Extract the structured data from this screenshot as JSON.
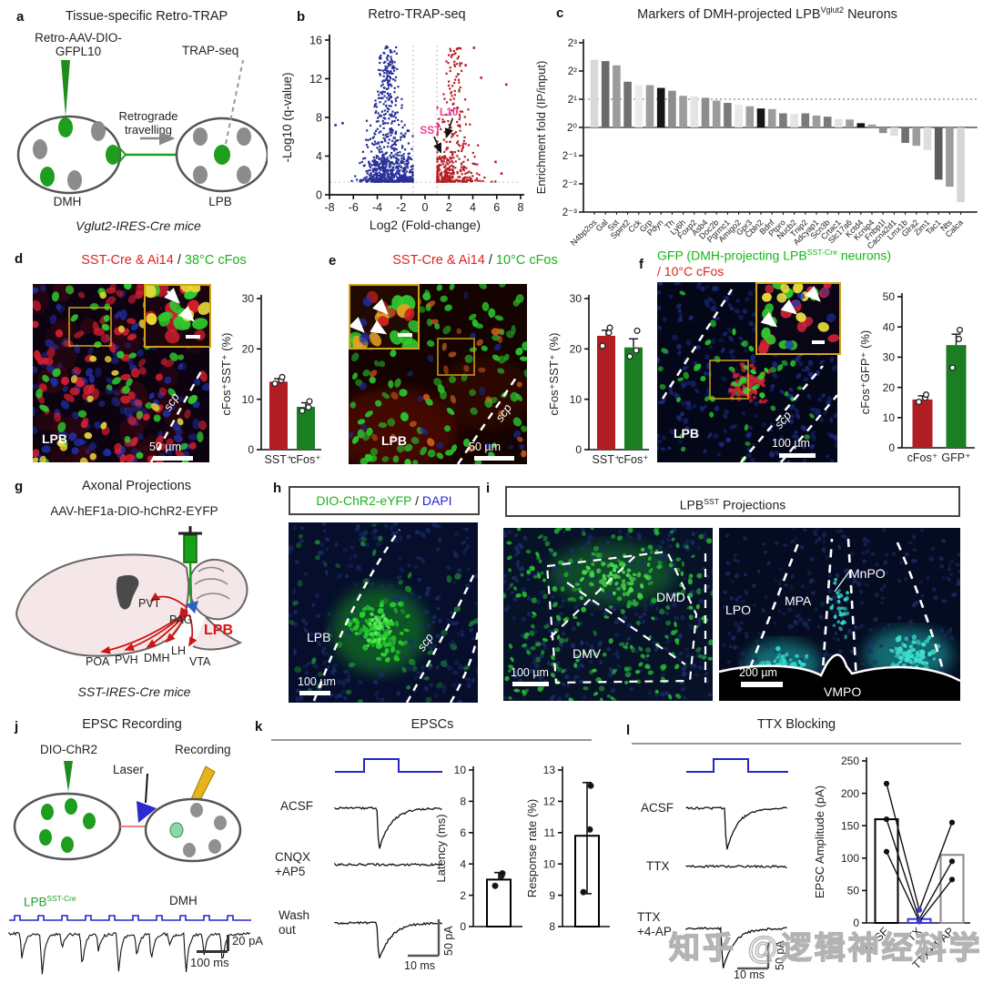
{
  "watermark": "知乎 @逻辑神经科学",
  "panels": {
    "a": {
      "letter": "a",
      "title": "Tissue-specific Retro-TRAP",
      "virus1": "Retro-AAV-DIO-",
      "virus2": "GFPL10",
      "trap": "TRAP-seq",
      "retro1": "Retrograde",
      "retro2": "travelling",
      "dmh": "DMH",
      "lpb": "LPB",
      "mouse": "Vglut2-IRES-Cre mice"
    },
    "b": {
      "letter": "b",
      "title": "Retro-TRAP-seq"
    },
    "c": {
      "letter": "c",
      "title_pre": "Markers of DMH-projected LPB",
      "title_sup": "Vglut2",
      "title_post": " Neurons"
    },
    "d": {
      "letter": "d",
      "title_red": "SST-Cre & Ai14",
      "sep": " / ",
      "title_green": "38°C cFos",
      "region": "LPB",
      "scp": "scp",
      "scale": "50 µm"
    },
    "e": {
      "letter": "e",
      "title_red": "SST-Cre & Ai14",
      "sep": " / ",
      "title_green": "10°C cFos",
      "region": "LPB",
      "scp": "scp",
      "scale": "50 µm"
    },
    "f": {
      "letter": "f",
      "t1a": "GFP (DMH-projecting LPB",
      "t1sup": "SST-Cre",
      "t1b": " neurons)",
      "t2": "/ 10°C cFos",
      "region": "LPB",
      "scp": "scp",
      "scale": "100 µm"
    },
    "g": {
      "letter": "g",
      "title": "Axonal Projections",
      "virus": "AAV-hEF1a-DIO-hChR2-EYFP",
      "pvt": "PVT",
      "pag": "PAG",
      "poa": "POA",
      "pvh": "PVH",
      "dmh": "DMH",
      "lh": "LH",
      "vta": "VTA",
      "lpb": "LPB",
      "mouse": "SST-IRES-Cre mice"
    },
    "h": {
      "letter": "h",
      "title_green": "DIO-ChR2-eYFP",
      "sep": " / ",
      "title_blue": "DAPI",
      "region": "LPB",
      "scp": "scp",
      "scale": "100 µm"
    },
    "i": {
      "letter": "i",
      "title_pre": "LPB",
      "title_sup": "SST",
      "title_post": " Projections",
      "dmd": "DMD",
      "dmv": "DMV",
      "scale1": "100 µm",
      "mnpo": "MnPO",
      "mpa": "MPA",
      "lpo": "LPO",
      "vmpo": "VMPO",
      "scale2": "200 µm"
    },
    "j": {
      "letter": "j",
      "title": "EPSC Recording",
      "chr2": "DIO-ChR2",
      "laser": "Laser",
      "rec": "Recording",
      "lpb": "LPB",
      "lpb_sup": "SST-Cre",
      "dmh": "DMH",
      "spa": "20 pA",
      "sms": "100 ms"
    },
    "k": {
      "letter": "k",
      "title": "EPSCs",
      "acsf": "ACSF",
      "cnqx1": "CNQX",
      "cnqx2": "+AP5",
      "wash1": "Wash",
      "wash2": "out",
      "spa": "50 pA",
      "sms": "10 ms"
    },
    "l": {
      "letter": "l",
      "title": "TTX Blocking",
      "acsf": "ACSF",
      "ttx": "TTX",
      "t4a": "TTX",
      "t4b": "+4-AP",
      "sms": "10 ms",
      "spa": "50 pA"
    }
  },
  "chart_data": [
    {
      "id": "volcano",
      "type": "scatter",
      "title": "Retro-TRAP-seq",
      "xlabel": "Log2 (Fold-change)",
      "ylabel": "-Log10 (q-value)",
      "xlim": [
        -8,
        8
      ],
      "ylim": [
        0,
        16
      ],
      "xticks": [
        -8,
        -6,
        -4,
        -2,
        0,
        2,
        4,
        6,
        8
      ],
      "yticks": [
        0,
        4,
        8,
        12,
        16
      ],
      "threshold_x": [
        -1,
        1
      ],
      "threshold_y": 1.3,
      "grid": false,
      "series": [
        {
          "name": "depleted",
          "color": "#283099",
          "n": 620,
          "center": -3.1
        },
        {
          "name": "enriched",
          "color": "#b51f24",
          "n": 300,
          "center": 2.4
        }
      ],
      "annotations": [
        {
          "text": "L10",
          "x": 2.0,
          "y": 8.2,
          "ax": 1.78,
          "ay": 5.95
        },
        {
          "text": "SST",
          "x": 0.45,
          "y": 6.3,
          "ax": 1.32,
          "ay": 4.4
        }
      ],
      "annotation_color": "#ee3f9e"
    },
    {
      "id": "markers",
      "type": "bar",
      "title": "Markers of DMH-projected LPB(Vglut2) Neurons",
      "ylabel": "Enrichment fold (IP/input)",
      "yscale": "log2",
      "ytick_exps": [
        3,
        2,
        1,
        0,
        -1,
        -2,
        -3
      ],
      "ytick_labels": [
        "2³",
        "2²",
        "2¹",
        "2⁰",
        "2⁻¹",
        "2⁻²",
        "2⁻³"
      ],
      "ref_line_exp": 1,
      "baseline_exp": 0,
      "categories": [
        "N4bp2os",
        "Gal",
        "Sst",
        "Spint2",
        "Cck",
        "Grp",
        "Pdyn",
        "Th",
        "Ly6h",
        "Foxp2",
        "Asb4",
        "Doc2b",
        "Pgrmc1",
        "Amigo2",
        "Gpr3",
        "Cbln2",
        "Bdnf",
        "Ptpro",
        "Nucb2",
        "Tnip2",
        "Adcyap1",
        "Scn3b",
        "Crtac1",
        "Slc17a6",
        "Kctd4",
        "Kcnip4",
        "Fnbp1l",
        "Cacna2d1",
        "Lmx1b",
        "Glra2",
        "Zim1",
        "Tac1",
        "Nts",
        "Calca"
      ],
      "values_log2": [
        2.4,
        2.35,
        2.2,
        1.62,
        1.5,
        1.5,
        1.4,
        1.3,
        1.12,
        1.1,
        1.05,
        0.95,
        0.87,
        0.8,
        0.75,
        0.67,
        0.65,
        0.5,
        0.48,
        0.5,
        0.42,
        0.38,
        0.3,
        0.28,
        0.15,
        0.1,
        -0.2,
        -0.3,
        -0.55,
        -0.65,
        -0.8,
        -1.85,
        -2.1,
        -2.65
      ],
      "colors": [
        "#d9d9d9",
        "#6a6a6a",
        "#9c9c9c",
        "#707070",
        "#ececec",
        "#9c9c9c",
        "#151515",
        "#8d8d8d",
        "#9c9c9c",
        "#e4e4e4",
        "#8d8d8d",
        "#9c9c9c",
        "#7a7a7a",
        "#e8e8e8",
        "#9c9c9c",
        "#151515",
        "#9c9c9c",
        "#7a7a7a",
        "#e4e4e4",
        "#7a7a7a",
        "#9c9c9c",
        "#7a7a7a",
        "#e4e4e4",
        "#9c9c9c",
        "#151515",
        "#9c9c9c",
        "#8d8d8d",
        "#dedede",
        "#707070",
        "#9c9c9c",
        "#dedede",
        "#5c5c5c",
        "#9c9c9c",
        "#d6d6d6"
      ]
    },
    {
      "id": "d_counts",
      "type": "bar",
      "ylabel": "cFos⁺SST⁺ (%)",
      "ylim": [
        0,
        30
      ],
      "yticks": [
        0,
        10,
        20,
        30
      ],
      "categories": [
        "SST⁺",
        "cFos⁺"
      ],
      "values": [
        13.5,
        8.5
      ],
      "errors": [
        0.6,
        0.8
      ],
      "colors": [
        "#b01e23",
        "#1b7e22"
      ],
      "points": [
        [
          13.1,
          13.8,
          14.4
        ],
        [
          7.7,
          8.4,
          9.6
        ]
      ]
    },
    {
      "id": "e_counts",
      "type": "bar",
      "ylabel": "cFos⁺SST⁺ (%)",
      "ylim": [
        0,
        30
      ],
      "yticks": [
        0,
        10,
        20,
        30
      ],
      "categories": [
        "SST⁺",
        "cFos⁺"
      ],
      "values": [
        22.6,
        20.3
      ],
      "errors": [
        1.1,
        1.7
      ],
      "colors": [
        "#b01e23",
        "#1b7e22"
      ],
      "points": [
        [
          20.6,
          23.2,
          24.2
        ],
        [
          18.5,
          19.7,
          23.6
        ]
      ]
    },
    {
      "id": "f_counts",
      "type": "bar",
      "ylabel": "cFos⁺GFP⁺ (%)",
      "ylim": [
        0,
        50
      ],
      "yticks": [
        0,
        10,
        20,
        30,
        40,
        50
      ],
      "categories": [
        "cFos⁺",
        "GFP⁺"
      ],
      "values": [
        16,
        34
      ],
      "errors": [
        1.2,
        3.6
      ],
      "colors": [
        "#b01e23",
        "#1b7e22"
      ],
      "points": [
        [
          15.2,
          16.5,
          17.6
        ],
        [
          26.5,
          36,
          39
        ]
      ]
    },
    {
      "id": "latency",
      "type": "bar",
      "ylabel": "Latency (ms)",
      "ylim": [
        0,
        10
      ],
      "yticks": [
        0,
        2,
        4,
        6,
        8,
        10
      ],
      "categories": [
        ""
      ],
      "values": [
        3.0
      ],
      "whiskers": [
        [
          3.0,
          3.45
        ]
      ],
      "colors": [
        "#ffffff"
      ],
      "bar_stroke": [
        "#000000"
      ],
      "points": [
        [
          2.6,
          3.25,
          3.4
        ]
      ],
      "filled": true
    },
    {
      "id": "response",
      "type": "bar",
      "ylabel": "Response rate (%)",
      "ylim": [
        8,
        13
      ],
      "yticks": [
        8,
        9,
        10,
        11,
        12,
        13
      ],
      "categories": [
        ""
      ],
      "values": [
        10.9
      ],
      "whiskers": [
        [
          9.05,
          12.6
        ]
      ],
      "colors": [
        "#ffffff"
      ],
      "bar_stroke": [
        "#000000"
      ],
      "points": [
        [
          9.1,
          11.1,
          12.5
        ]
      ],
      "filled": true
    },
    {
      "id": "amplitude",
      "type": "bar",
      "ylabel": "EPSC Amplitude (pA)",
      "ylim": [
        0,
        250
      ],
      "yticks": [
        0,
        50,
        100,
        150,
        200,
        250
      ],
      "categories": [
        "ACSF",
        "TTX",
        "TTX+4-AP"
      ],
      "values": [
        160,
        6,
        105
      ],
      "colors": [
        "#ffffff",
        "#ffffff",
        "#ffffff"
      ],
      "bar_stroke": [
        "#000000",
        "#3a3ad6",
        "#888888"
      ],
      "paired_lines": [
        [
          215,
          20,
          155
        ],
        [
          160,
          6,
          95
        ],
        [
          110,
          2,
          67
        ]
      ],
      "filled": true,
      "rotate_xlabels": true
    }
  ]
}
